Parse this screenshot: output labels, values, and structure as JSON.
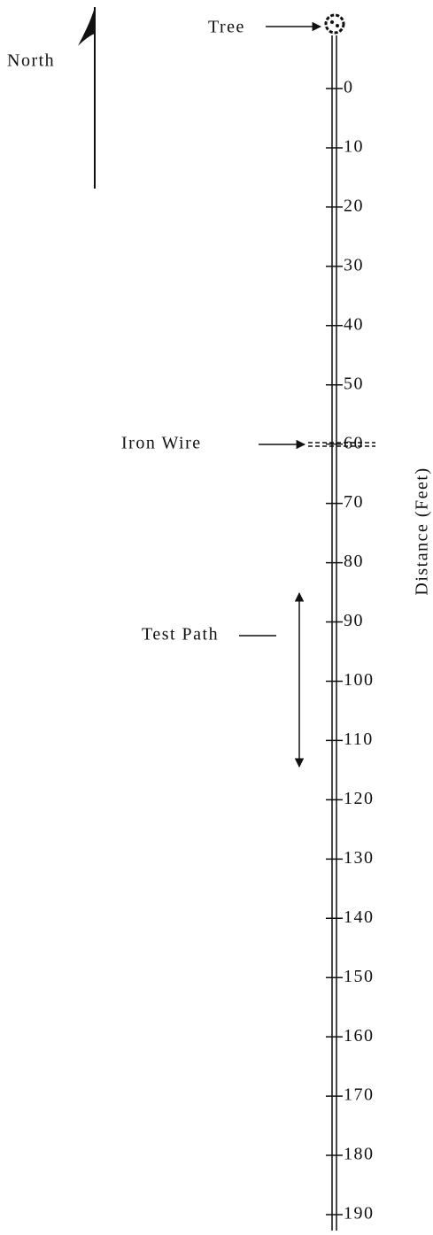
{
  "labels": {
    "tree": "Tree",
    "north": "North",
    "iron_wire": "Iron Wire",
    "test_path": "Test Path",
    "axis": "Distance (Feet)"
  },
  "scale": {
    "ticks": [
      0,
      10,
      20,
      30,
      40,
      50,
      60,
      70,
      80,
      90,
      100,
      110,
      120,
      130,
      140,
      150,
      160,
      170,
      180,
      190
    ]
  }
}
